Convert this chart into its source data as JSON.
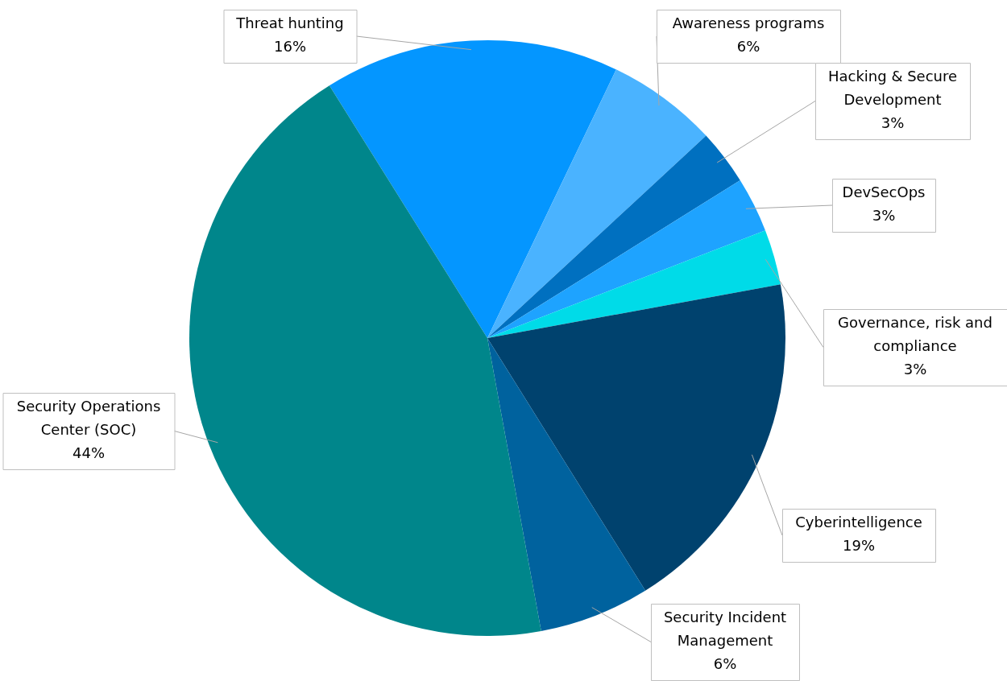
{
  "chart_data": {
    "type": "pie",
    "categories": [
      "Threat hunting",
      "Awareness programs",
      "Hacking & Secure Development",
      "DevSecOps",
      "Governance, risk and compliance",
      "Cyberintelligence",
      "Security Incident Management",
      "Security Operations Center (SOC)"
    ],
    "values": [
      16,
      6,
      3,
      3,
      3,
      19,
      6,
      44
    ],
    "value_labels": [
      "16%",
      "6%",
      "3%",
      "3%",
      "3%",
      "19%",
      "6%",
      "44%"
    ],
    "colors": [
      "#0496ff",
      "#4ab3ff",
      "#0070c0",
      "#1ea3ff",
      "#00dbe8",
      "#00426e",
      "#00629e",
      "#00868b"
    ],
    "legend": false
  }
}
